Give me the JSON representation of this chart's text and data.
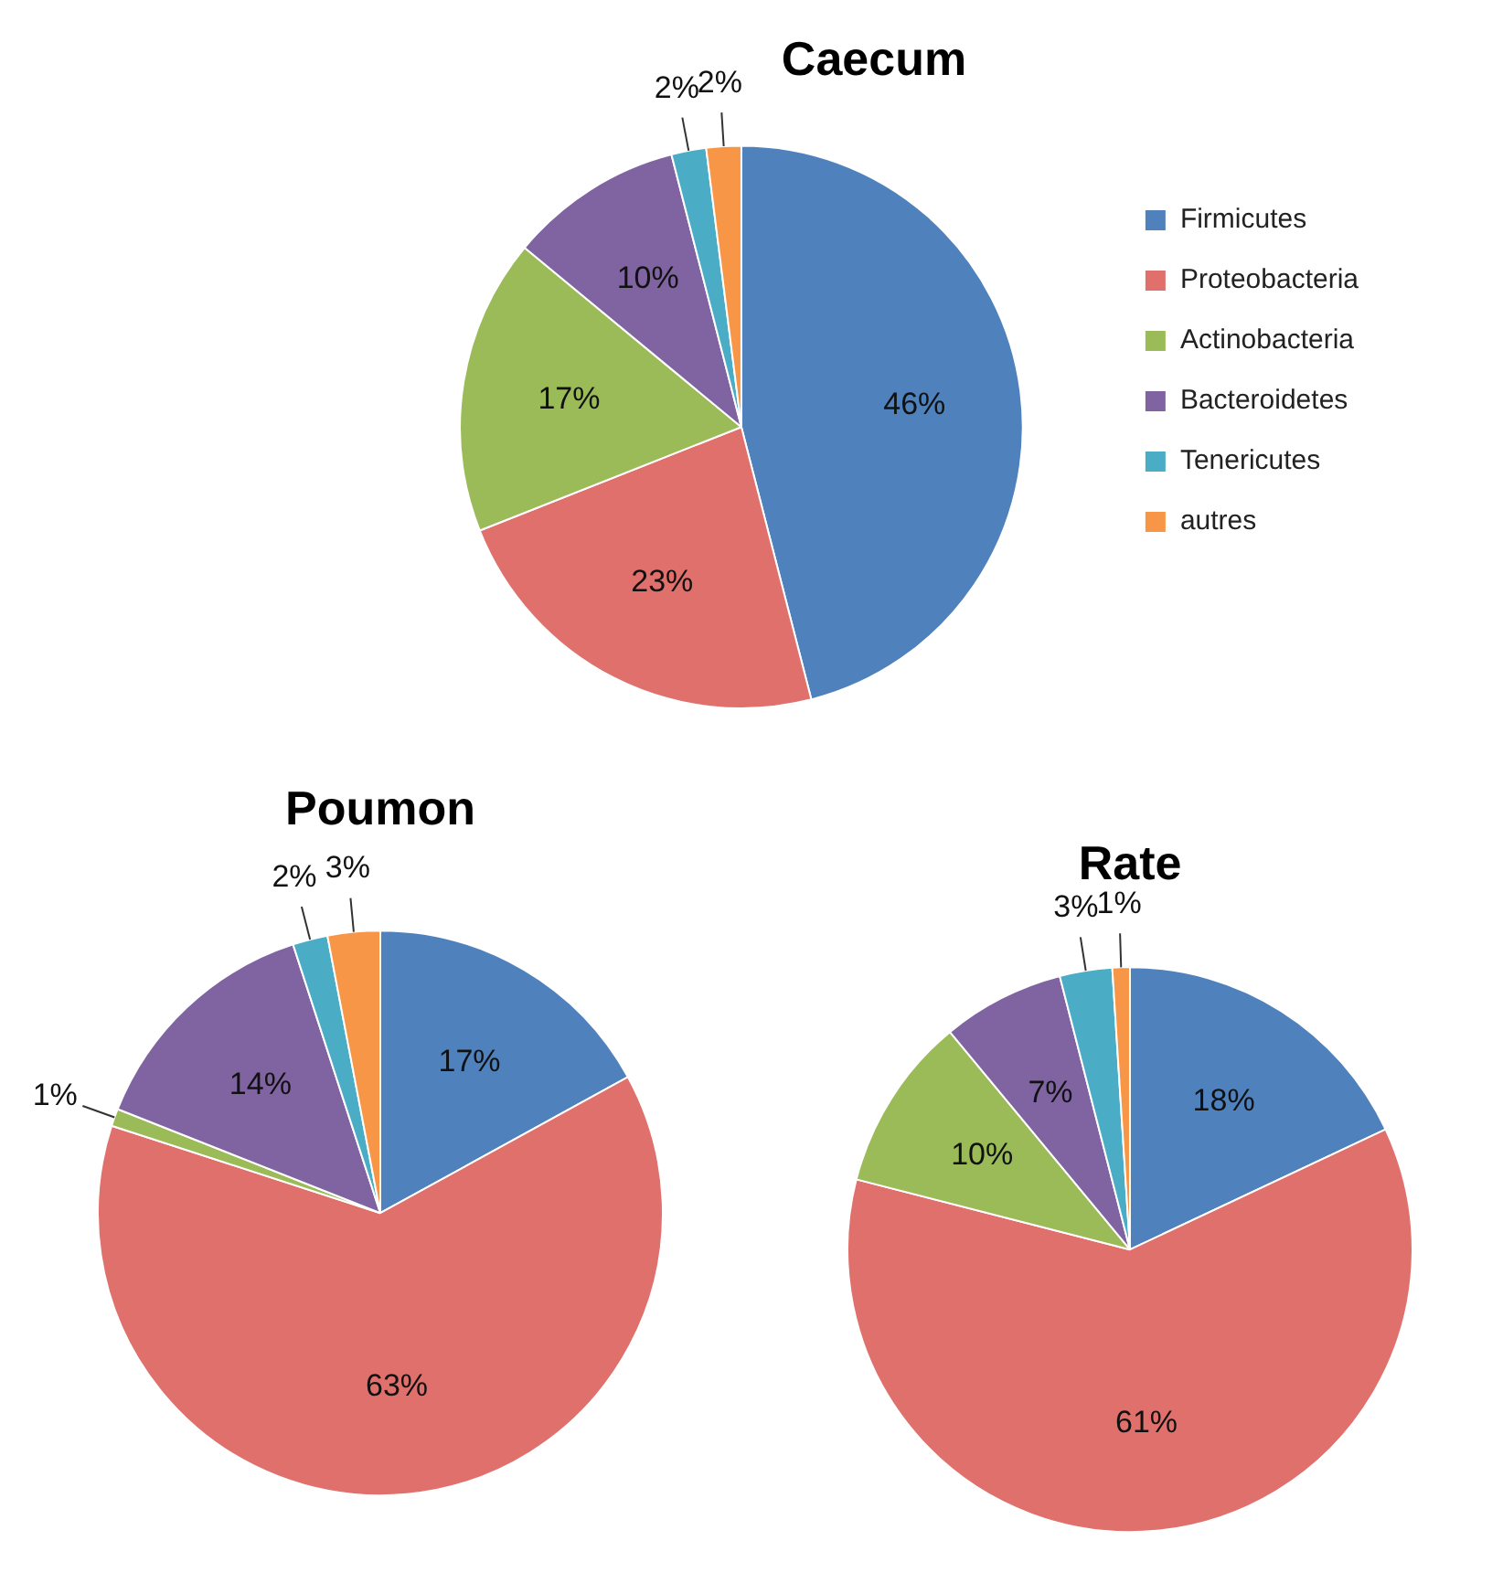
{
  "chart_data": [
    {
      "type": "pie",
      "title": "Caecum",
      "categories": [
        "Firmicutes",
        "Proteobacteria",
        "Actinobacteria",
        "Bacteroidetes",
        "Tenericutes",
        "autres"
      ],
      "values": [
        46,
        23,
        17,
        10,
        2,
        2
      ],
      "value_labels": [
        "46%",
        "23%",
        "17%",
        "10%",
        "2%",
        "2%"
      ],
      "colors": [
        "#4f81bd",
        "#e0706c",
        "#9bbb59",
        "#8064a2",
        "#4bacc6",
        "#f79646"
      ],
      "legend": "right"
    },
    {
      "type": "pie",
      "title": "Poumon",
      "categories": [
        null,
        null,
        null,
        null,
        null,
        null
      ],
      "values": [
        17,
        63,
        1,
        14,
        2,
        3
      ],
      "value_labels": [
        "17%",
        "63%",
        "1%",
        "14%",
        "2%",
        "3%"
      ],
      "colors": [
        "#4f81bd",
        "#e0706c",
        "#9bbb59",
        "#8064a2",
        "#4bacc6",
        "#f79646"
      ]
    },
    {
      "type": "pie",
      "title": "Rate",
      "categories": [
        null,
        null,
        null,
        null,
        null,
        null
      ],
      "values": [
        18,
        61,
        10,
        7,
        3,
        1
      ],
      "value_labels": [
        "18%",
        "61%",
        "10%",
        "7%",
        "3%",
        "1%"
      ],
      "colors": [
        "#4f81bd",
        "#e0706c",
        "#9bbb59",
        "#8064a2",
        "#4bacc6",
        "#f79646"
      ]
    }
  ]
}
